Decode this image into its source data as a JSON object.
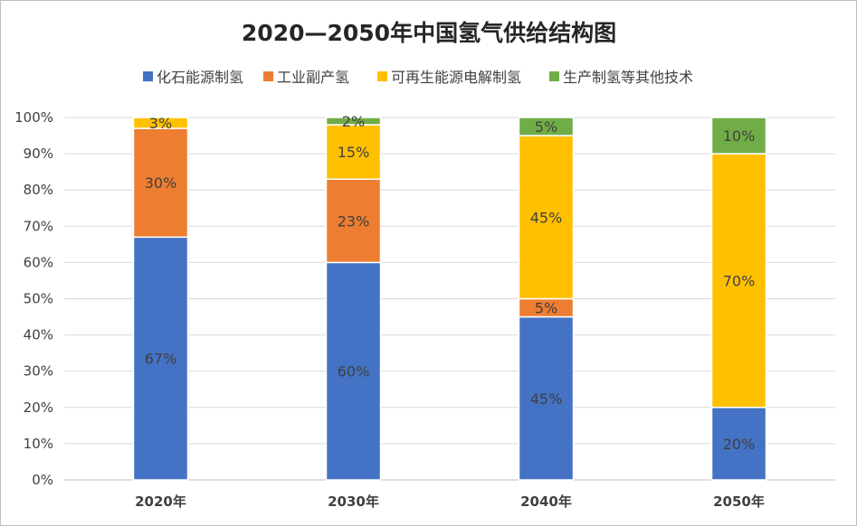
{
  "chart_data": {
    "type": "bar",
    "stacked": true,
    "title": "2020—2050年中国氢气供给结构图",
    "xlabel": "",
    "ylabel": "",
    "ylim": [
      0,
      100
    ],
    "yticks": [
      "0%",
      "10%",
      "20%",
      "30%",
      "40%",
      "50%",
      "60%",
      "70%",
      "80%",
      "90%",
      "100%"
    ],
    "grid": true,
    "legend_position": "top",
    "categories": [
      "2020年",
      "2030年",
      "2040年",
      "2050年"
    ],
    "series": [
      {
        "name": "化石能源制氢",
        "color": "#4472C4",
        "values": [
          67,
          60,
          45,
          20
        ]
      },
      {
        "name": "工业副产氢",
        "color": "#ED7D31",
        "values": [
          30,
          23,
          5,
          0
        ]
      },
      {
        "name": "可再生能源电解制氢",
        "color": "#FFC000",
        "values": [
          3,
          15,
          45,
          70
        ]
      },
      {
        "name": "生产制氢等其他技术",
        "color": "#70AD47",
        "values": [
          0,
          2,
          5,
          10
        ]
      }
    ]
  }
}
